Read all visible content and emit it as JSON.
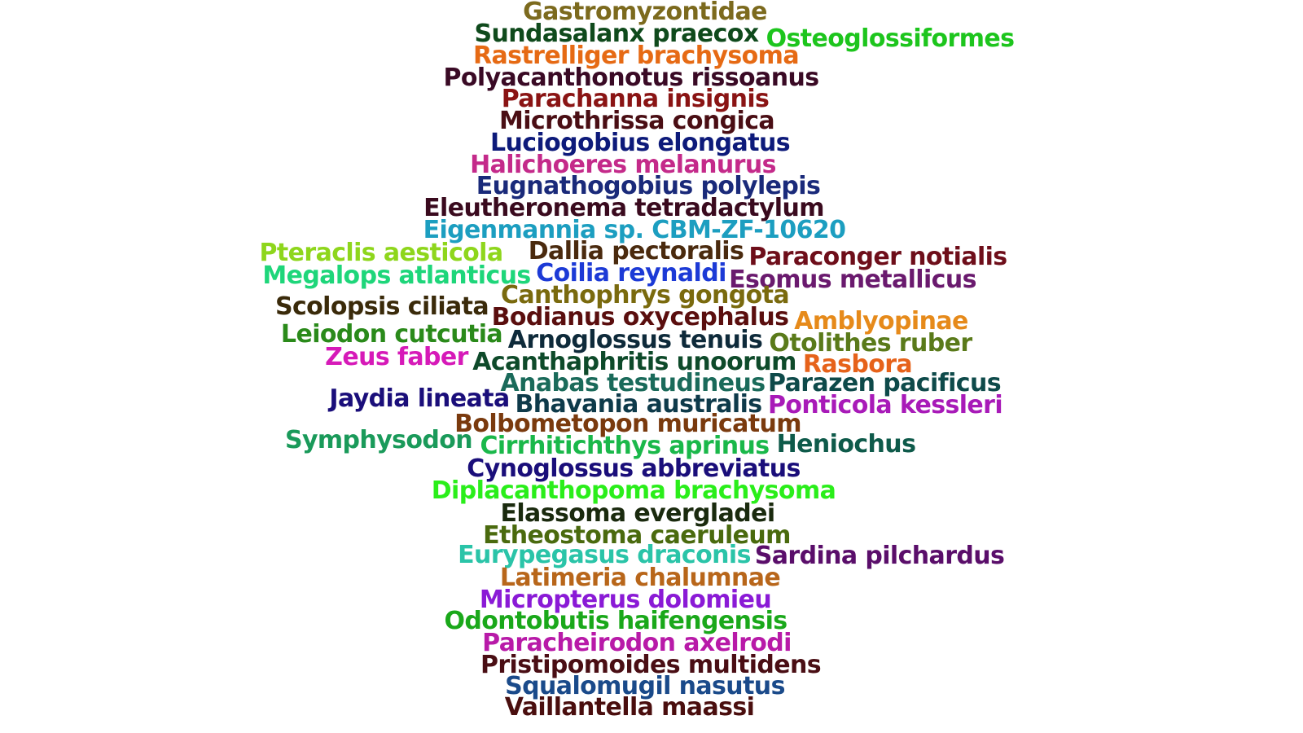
{
  "words": [
    {
      "text": "Gastromyzontidae",
      "color": "#7c6a1e"
    },
    {
      "text": "Sundasalanx praecox",
      "color": "#0f4a1c"
    },
    {
      "text": "Osteoglossiformes",
      "color": "#1dc51d"
    },
    {
      "text": "Rastrelliger brachysoma",
      "color": "#e66a14"
    },
    {
      "text": "Polyacanthonotus rissoanus",
      "color": "#3a0a25"
    },
    {
      "text": "Parachanna insignis",
      "color": "#8a1414"
    },
    {
      "text": "Microthrissa congica",
      "color": "#4a0e14"
    },
    {
      "text": "Luciogobius elongatus",
      "color": "#0d1a7a"
    },
    {
      "text": "Halichoeres melanurus",
      "color": "#c42a8a"
    },
    {
      "text": "Eugnathogobius polylepis",
      "color": "#1a2a7a"
    },
    {
      "text": "Eleutheronema tetradactylum",
      "color": "#3a0a1e"
    },
    {
      "text": "Eigenmannia sp. CBM-ZF-10620",
      "color": "#1c9ec0"
    },
    {
      "text": "Pteraclis aesticola",
      "color": "#8ed61c"
    },
    {
      "text": "Dallia pectoralis",
      "color": "#4a2a0e"
    },
    {
      "text": "Paraconger notialis",
      "color": "#6e0e1a"
    },
    {
      "text": "Megalops atlanticus",
      "color": "#1ed67a"
    },
    {
      "text": "Coilia reynaldi",
      "color": "#1c3ad6"
    },
    {
      "text": "Esomus metallicus",
      "color": "#6a1a6e"
    },
    {
      "text": "Canthophrys gongota",
      "color": "#7a6a0e"
    },
    {
      "text": "Scolopsis ciliata",
      "color": "#3a2a0a"
    },
    {
      "text": "Bodianus oxycephalus",
      "color": "#5a0e0e"
    },
    {
      "text": "Amblyopinae",
      "color": "#e68a1a"
    },
    {
      "text": "Leiodon cutcutia",
      "color": "#2a8a1a"
    },
    {
      "text": "Arnoglossus tenuis",
      "color": "#0e2a3a"
    },
    {
      "text": "Otolithes ruber",
      "color": "#5a7a1a"
    },
    {
      "text": "Zeus faber",
      "color": "#d61ab8"
    },
    {
      "text": "Acanthaphritis unoorum",
      "color": "#0e4a2a"
    },
    {
      "text": "Rasbora",
      "color": "#e6621a"
    },
    {
      "text": "Anabas testudineus",
      "color": "#1a6a5a"
    },
    {
      "text": "Parazen pacificus",
      "color": "#0e4a4a"
    },
    {
      "text": "Jaydia lineata",
      "color": "#1a0e7a"
    },
    {
      "text": "Bhavania australis",
      "color": "#0e3a4a"
    },
    {
      "text": "Ponticola kessleri",
      "color": "#a81ab8"
    },
    {
      "text": "Bolbometopon muricatum",
      "color": "#7a3a0e"
    },
    {
      "text": "Symphysodon",
      "color": "#1a9a5a"
    },
    {
      "text": "Cirrhitichthys aprinus",
      "color": "#1ab84a"
    },
    {
      "text": "Heniochus",
      "color": "#0e5a4a"
    },
    {
      "text": "Cynoglossus abbreviatus",
      "color": "#1a0e7a"
    },
    {
      "text": "Diplacanthopoma brachysoma",
      "color": "#2aee1a"
    },
    {
      "text": "Elassoma evergladei",
      "color": "#1a2a0e"
    },
    {
      "text": "Etheostoma caeruleum",
      "color": "#4a6a0e"
    },
    {
      "text": "Eurypegasus draconis",
      "color": "#2ac4a8"
    },
    {
      "text": "Sardina pilchardus",
      "color": "#5a0e6a"
    },
    {
      "text": "Latimeria chalumnae",
      "color": "#b8661a"
    },
    {
      "text": "Micropterus dolomieu",
      "color": "#8a1ad6"
    },
    {
      "text": "Odontobutis haifengensis",
      "color": "#1aa81a"
    },
    {
      "text": "Paracheirodon axelrodi",
      "color": "#b81aa8"
    },
    {
      "text": "Pristipomoides multidens",
      "color": "#4a0e14"
    },
    {
      "text": "Squalomugil nasutus",
      "color": "#1a4a8a"
    },
    {
      "text": "Vaillantella maassi",
      "color": "#4a0e0e"
    }
  ]
}
